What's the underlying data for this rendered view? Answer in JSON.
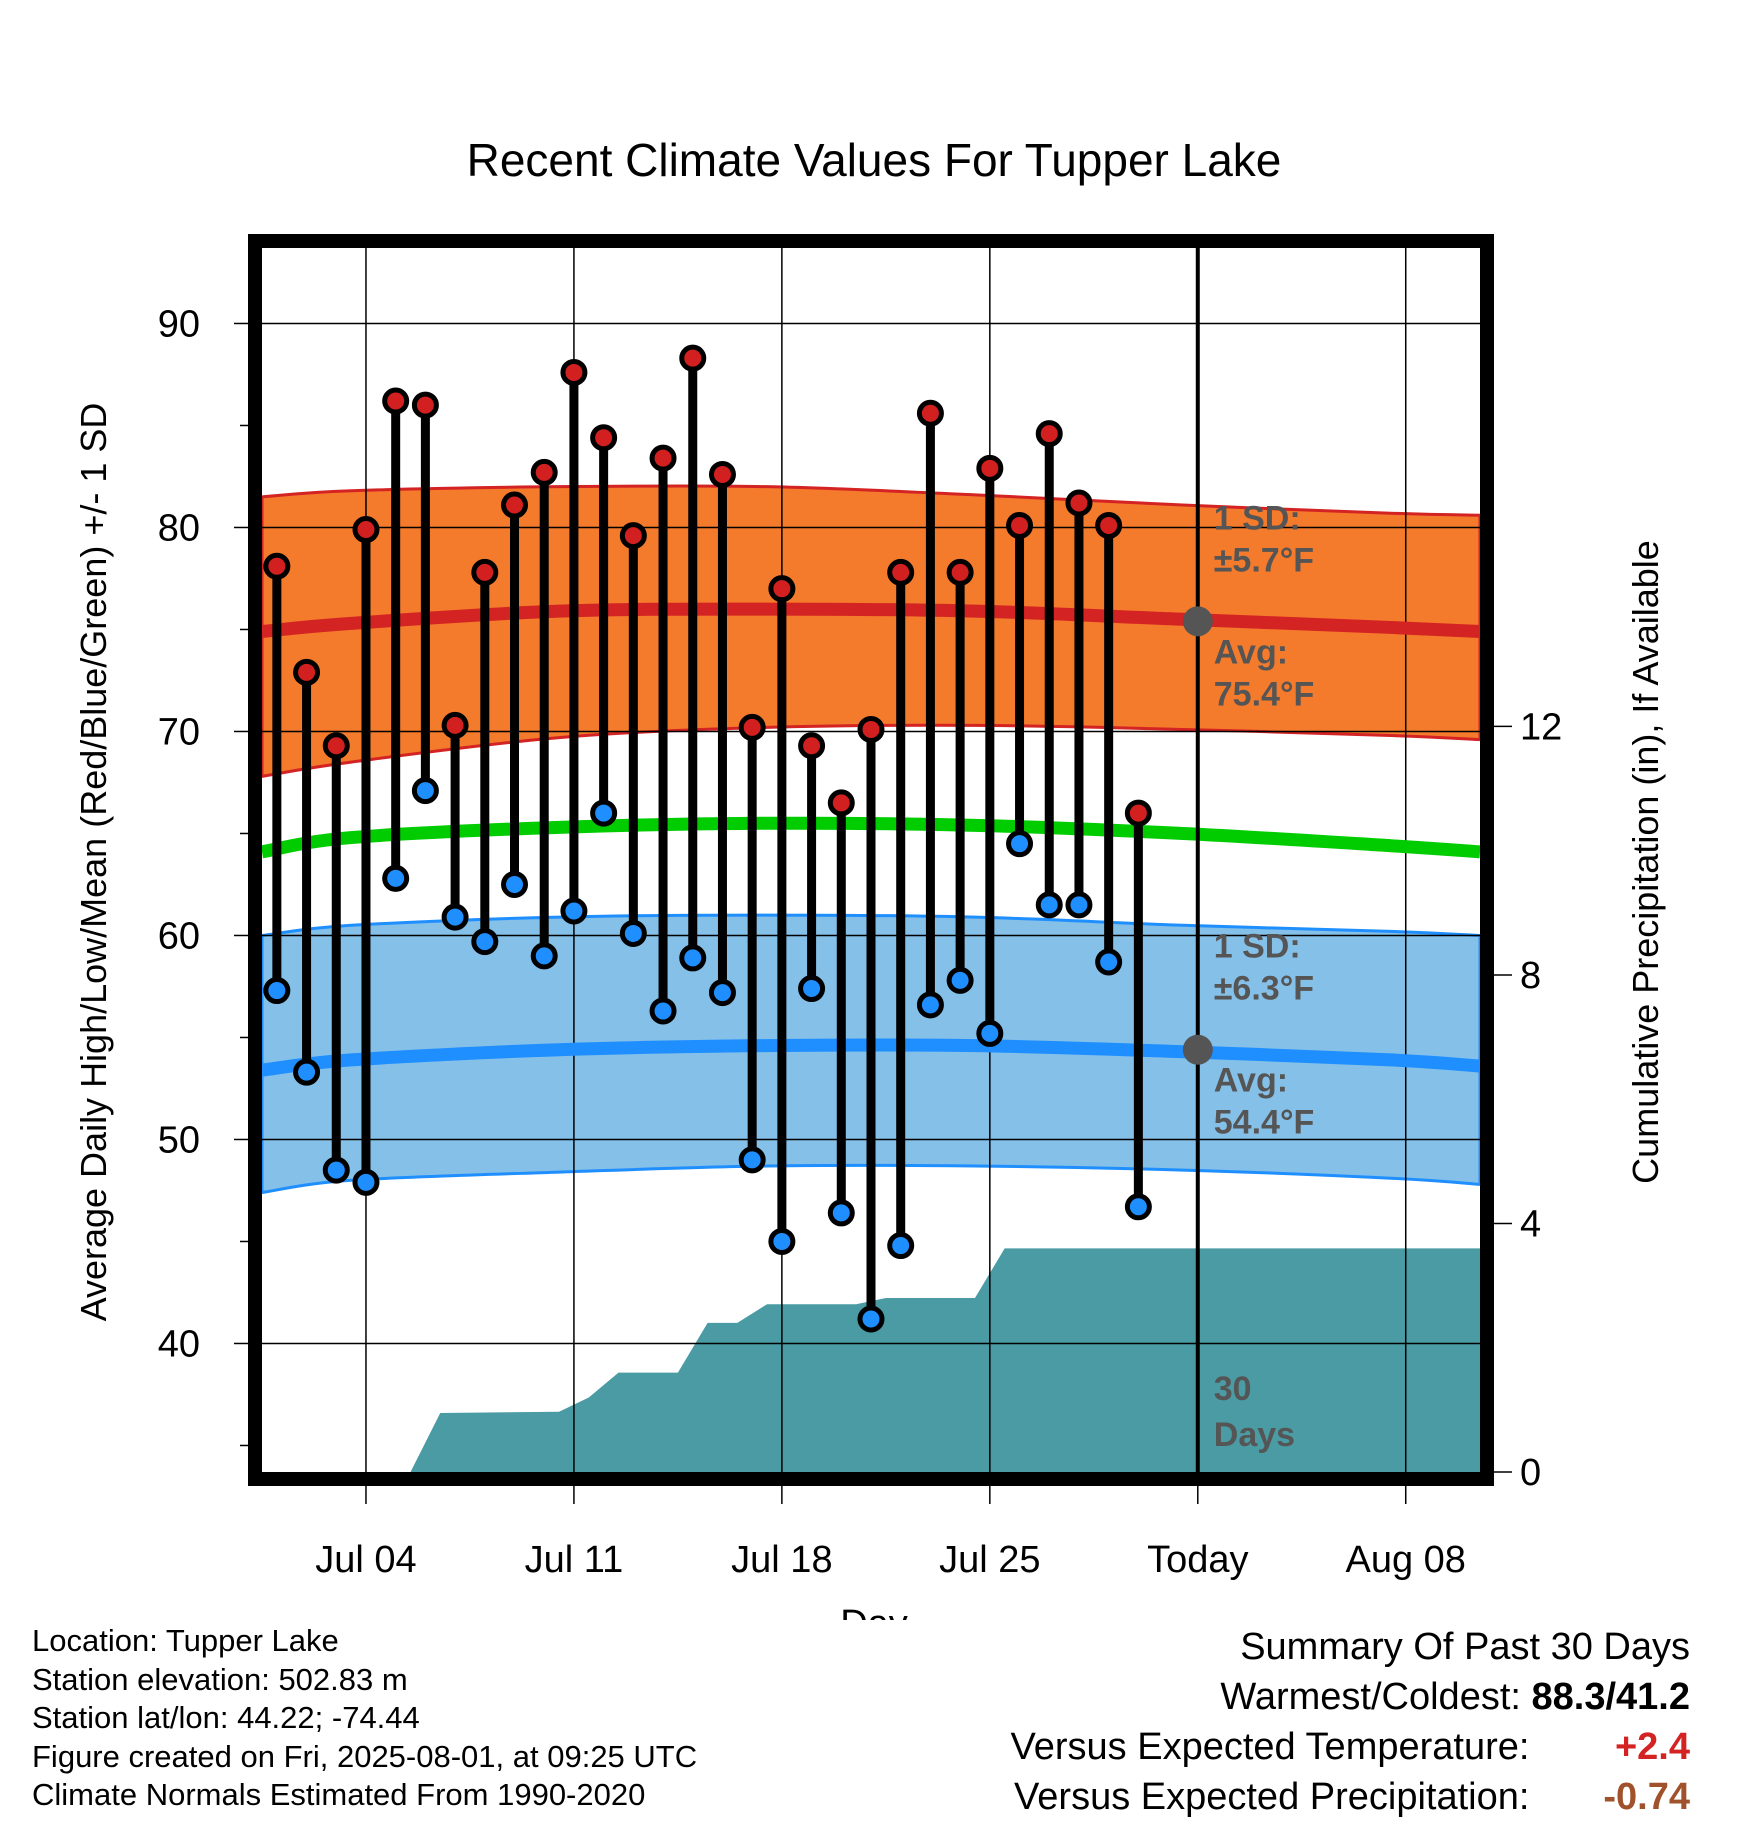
{
  "title": "Recent Climate Values For Tupper Lake",
  "chart_data": {
    "type": "line",
    "title": "Recent Climate Values For Tupper Lake",
    "xlabel": "Day",
    "ylabel": "Average Daily High/Low/Mean (Red/Blue/Green) +/- 1 SD",
    "y2label": "Cumulative Precipitation (in), If Available",
    "x_tick_labels": [
      "Jul 04",
      "Jul 11",
      "Jul 18",
      "Jul 25",
      "Today",
      "Aug 08"
    ],
    "x_tick_days": [
      3,
      10,
      17,
      24,
      31,
      38
    ],
    "xlim_days": [
      -0.5,
      40.5
    ],
    "ylim": [
      33.7,
      93.7
    ],
    "y_ticks": [
      40,
      50,
      60,
      70,
      80,
      90
    ],
    "y2lim": [
      0,
      19.7
    ],
    "y2_ticks": [
      0,
      4,
      8,
      12
    ],
    "today_day": 31,
    "grid": true,
    "daily": {
      "days": [
        0,
        1,
        2,
        3,
        4,
        5,
        6,
        7,
        8,
        9,
        10,
        11,
        12,
        13,
        14,
        15,
        16,
        17,
        18,
        19,
        20,
        21,
        22,
        23,
        24,
        25,
        26,
        27,
        28,
        29
      ],
      "high": [
        78.1,
        72.9,
        69.3,
        79.9,
        86.2,
        86.0,
        70.3,
        77.8,
        81.1,
        82.7,
        87.6,
        84.4,
        79.6,
        83.4,
        88.3,
        82.6,
        70.2,
        77.0,
        69.3,
        66.5,
        70.1,
        77.8,
        85.6,
        77.8,
        82.9,
        80.1,
        84.6,
        81.2,
        80.1,
        66.0
      ],
      "low": [
        57.3,
        53.3,
        48.5,
        47.9,
        62.8,
        67.1,
        60.9,
        59.7,
        62.5,
        59.0,
        61.2,
        66.0,
        60.1,
        56.3,
        58.9,
        57.2,
        49.0,
        45.0,
        57.4,
        46.4,
        41.2,
        44.8,
        56.6,
        57.8,
        55.2,
        64.5,
        61.5,
        61.5,
        58.7,
        46.7
      ]
    },
    "normals": {
      "days": [
        -0.5,
        2.5,
        9.5,
        16.5,
        23.5,
        30.5,
        37.5,
        40.5
      ],
      "avg_high": [
        74.9,
        75.3,
        75.9,
        76.0,
        75.9,
        75.5,
        75.1,
        74.9
      ],
      "high_upper": [
        81.5,
        81.8,
        82.0,
        82.0,
        81.6,
        81.1,
        80.7,
        80.6
      ],
      "high_lower": [
        67.8,
        68.5,
        69.7,
        70.2,
        70.3,
        70.1,
        69.8,
        69.6
      ],
      "avg_mean": [
        64.1,
        64.8,
        65.3,
        65.5,
        65.4,
        65.0,
        64.4,
        64.1
      ],
      "avg_low": [
        53.4,
        53.9,
        54.4,
        54.6,
        54.6,
        54.3,
        53.9,
        53.6
      ],
      "low_upper": [
        60.0,
        60.5,
        60.9,
        61.0,
        60.9,
        60.5,
        60.2,
        60.0
      ],
      "low_lower": [
        47.4,
        48.0,
        48.4,
        48.7,
        48.7,
        48.5,
        48.1,
        47.8
      ]
    },
    "precip_cumulative": {
      "days": [
        4.5,
        5.5,
        9.5,
        10.5,
        11.5,
        13.5,
        14.5,
        15.5,
        16.5,
        17.5,
        18.5,
        19.5,
        20.5,
        21.5,
        22.5,
        23.5,
        24.5,
        25.5,
        26.5,
        40.5
      ],
      "values": [
        0,
        0.95,
        0.97,
        1.2,
        1.6,
        1.6,
        2.4,
        2.4,
        2.7,
        2.7,
        2.7,
        2.7,
        2.8,
        2.8,
        2.8,
        2.8,
        3.6,
        3.6,
        3.6,
        3.6
      ]
    },
    "annotations": {
      "high_sd_label": "1 SD:",
      "high_sd_value": "±5.7°F",
      "high_avg_label": "Avg:",
      "high_avg_value": "75.4°F",
      "high_avg_today": 75.4,
      "low_sd_label": "1 SD:",
      "low_sd_value": "±6.3°F",
      "low_avg_label": "Avg:",
      "low_avg_value": "54.4°F",
      "low_avg_today": 54.4,
      "days_label_1": "30",
      "days_label_2": "Days"
    },
    "colors": {
      "high_band": "#f47a2c",
      "high_line": "#d32323",
      "low_band": "#85c0e8",
      "low_line": "#1f8fff",
      "mean_line": "#00cc00",
      "precip_fill": "#4a9ba4",
      "high_marker": "#d21f1f",
      "low_marker": "#1f8fff",
      "annotation": "#555555"
    }
  },
  "footer": {
    "location": "Location: Tupper Lake",
    "elevation": "Station elevation: 502.83 m",
    "latlon": "Station lat/lon: 44.22; -74.44",
    "created": "Figure created on Fri, 2025-08-01, at 09:25 UTC",
    "normals": "Climate Normals Estimated From 1990-2020"
  },
  "summary": {
    "title": "Summary Of Past 30 Days",
    "warm_cold_label": "Warmest/Coldest:",
    "warm_cold_value": "88.3/41.2",
    "temp_label": "Versus Expected Temperature:",
    "temp_value": "+2.4",
    "temp_color": "#d32323",
    "precip_label": "Versus Expected Precipitation:",
    "precip_value": "-0.74",
    "precip_color": "#a0522d"
  }
}
